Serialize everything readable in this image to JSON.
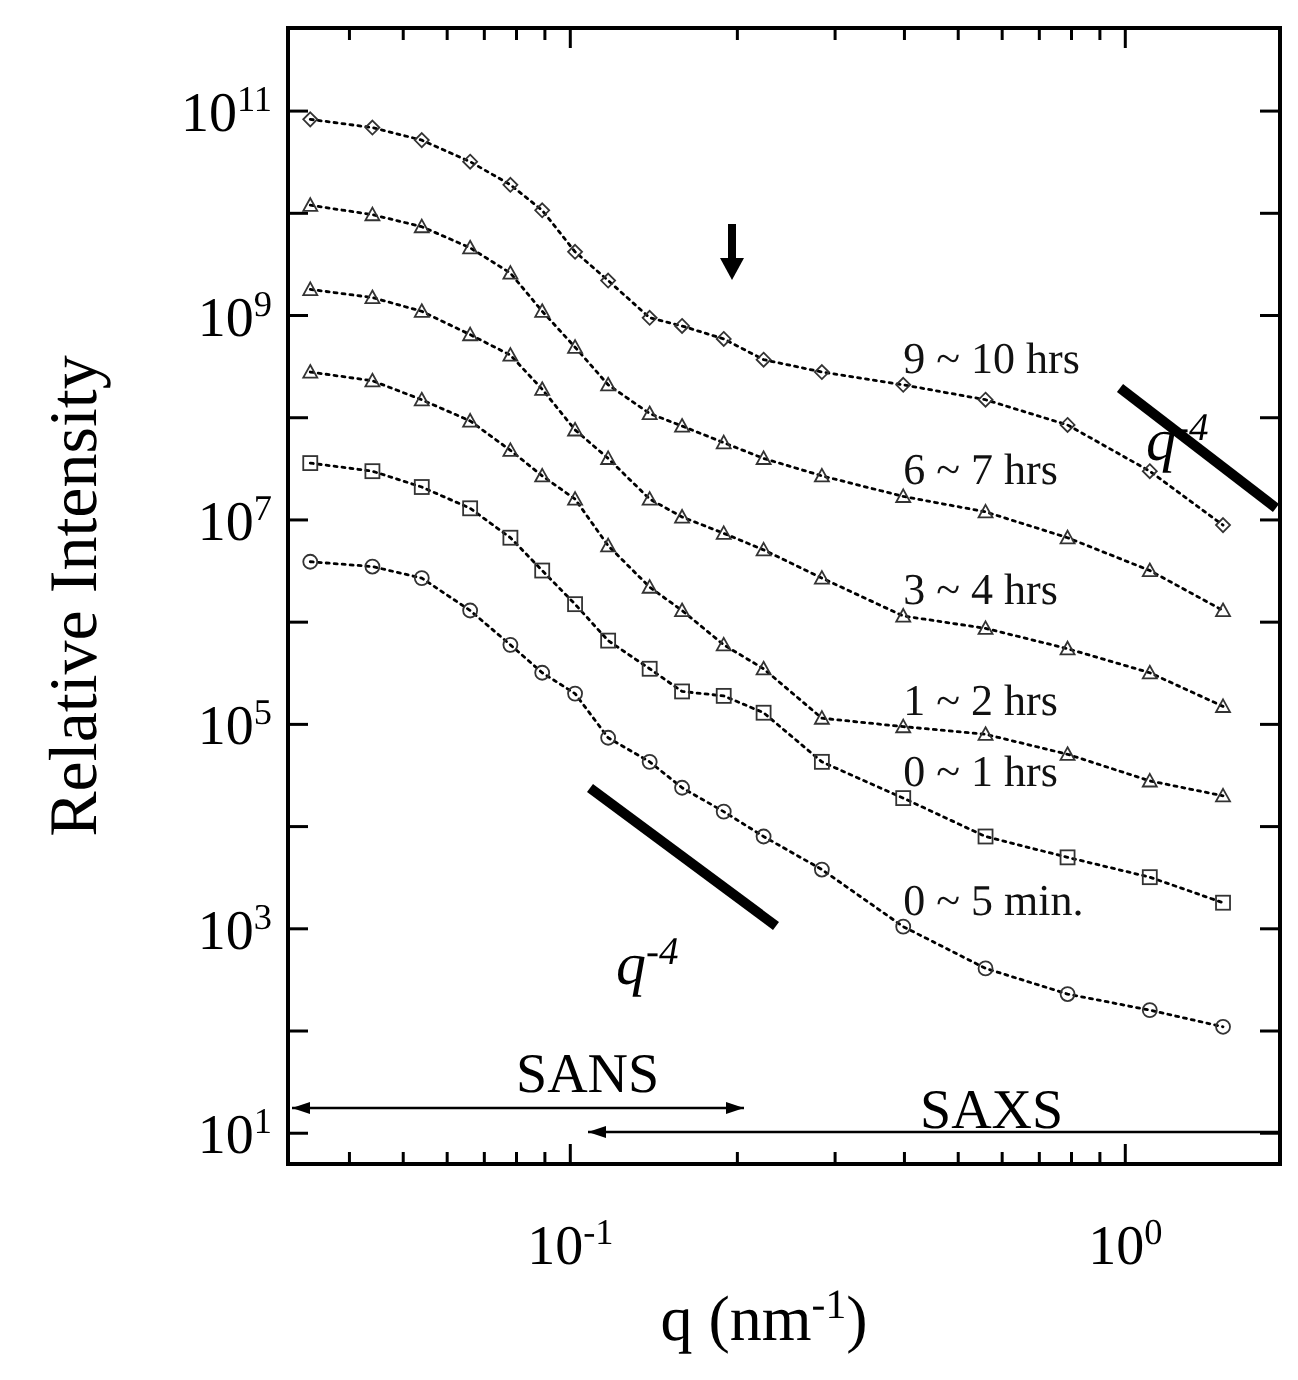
{
  "chart_data": {
    "type": "line",
    "xlabel": "q (nm$^{-1}$)",
    "ylabel": "Relative Intensity",
    "log": "xy",
    "grid": false,
    "line_style": "dotted",
    "xlim": [
      0.031,
      1.9
    ],
    "ylim": [
      5,
      650000000000.0
    ],
    "xticks": [
      {
        "value": 0.04,
        "label": null
      },
      {
        "value": 0.05,
        "label": null
      },
      {
        "value": 0.06,
        "label": null
      },
      {
        "value": 0.07,
        "label": null
      },
      {
        "value": 0.08,
        "label": null
      },
      {
        "value": 0.09,
        "label": null
      },
      {
        "value": 0.1,
        "label": "10$^{-1}$"
      },
      {
        "value": 0.2,
        "label": null
      },
      {
        "value": 0.3,
        "label": null
      },
      {
        "value": 0.4,
        "label": null
      },
      {
        "value": 0.5,
        "label": null
      },
      {
        "value": 0.6,
        "label": null
      },
      {
        "value": 0.7,
        "label": null
      },
      {
        "value": 0.8,
        "label": null
      },
      {
        "value": 0.9,
        "label": null
      },
      {
        "value": 1,
        "label": "10$^{0}$"
      }
    ],
    "yticks": [
      {
        "value": 10,
        "label": "10$^{1}$"
      },
      {
        "value": 100,
        "label": null
      },
      {
        "value": 1000,
        "label": "10$^{3}$"
      },
      {
        "value": 10000,
        "label": null
      },
      {
        "value": 100000,
        "label": "10$^{5}$"
      },
      {
        "value": 1000000,
        "label": null
      },
      {
        "value": 10000000,
        "label": "10$^{7}$"
      },
      {
        "value": 100000000,
        "label": null
      },
      {
        "value": 1000000000,
        "label": "10$^{9}$"
      },
      {
        "value": 10000000000,
        "label": null
      },
      {
        "value": 100000000000,
        "label": "10$^{11}$"
      }
    ],
    "x": [
      0.034,
      0.044,
      0.054,
      0.066,
      0.078,
      0.089,
      0.102,
      0.117,
      0.139,
      0.159,
      0.189,
      0.223,
      0.284,
      0.398,
      0.56,
      0.787,
      1.107,
      1.5
    ],
    "series": [
      {
        "name": "9 ~ 10 hrs",
        "color": "#333333",
        "marker": "diamond",
        "values": [
          83000000000.0,
          69000000000.0,
          52000000000.0,
          32000000000.0,
          19000000000.0,
          10700000000.0,
          4200000000.0,
          2200000000.0,
          950000000.0,
          790000000.0,
          590000000.0,
          370000000.0,
          280000000.0,
          210000000.0,
          150000000.0,
          85000000.0,
          30000000.0,
          8900000.0
        ]
      },
      {
        "name": "6 ~ 7 hrs",
        "color": "#333333",
        "marker": "triangle",
        "values": [
          12000000000.0,
          9700000000.0,
          7400000000.0,
          4600000000.0,
          2600000000.0,
          1100000000.0,
          490000000.0,
          210000000.0,
          110000000.0,
          83000000.0,
          57000000.0,
          40000000.0,
          27000000.0,
          17000000.0,
          12000000.0,
          6700000.0,
          3200000.0,
          1300000.0
        ]
      },
      {
        "name": "3 ~ 4 hrs",
        "color": "#333333",
        "marker": "triangle",
        "values": [
          1800000000.0,
          1500000000.0,
          1100000000.0,
          650000000.0,
          410000000.0,
          190000000.0,
          76000000.0,
          40000000.0,
          16000000.0,
          10700000.0,
          7400000.0,
          5100000.0,
          2700000.0,
          1150000.0,
          870000.0,
          550000.0,
          320000.0,
          150000.0
        ]
      },
      {
        "name": "1 ~ 2 hrs",
        "color": "#333333",
        "marker": "triangle",
        "values": [
          280000000.0,
          230000000.0,
          150000000.0,
          93000000.0,
          48000000.0,
          27000000.0,
          16000000.0,
          5600000.0,
          2200000.0,
          1300000.0,
          600000.0,
          350000.0,
          115000.0,
          95000.0,
          80000.0,
          51000.0,
          28000.0,
          20000.0
        ]
      },
      {
        "name": "0 ~ 1 hrs",
        "color": "#333333",
        "marker": "square",
        "values": [
          36000000.0,
          30000000.0,
          21000000.0,
          13000000.0,
          6700000.0,
          3200000.0,
          1500000.0,
          660000.0,
          350000.0,
          210000.0,
          190000.0,
          130000.0,
          43000.0,
          19000.0,
          8000.0,
          5000.0,
          3200.0,
          1800.0
        ]
      },
      {
        "name": "0 ~ 5 min.",
        "color": "#333333",
        "marker": "circle",
        "values": [
          3900000.0,
          3500000.0,
          2700000.0,
          1300000.0,
          600000.0,
          320000.0,
          200000.0,
          74000.0,
          43000.0,
          24000.0,
          14000.0,
          8000.0,
          3800.0,
          1050.0,
          410.0,
          230.0,
          160.0,
          110.0
        ]
      }
    ],
    "annotations": [
      "q$^{-4}$",
      "q$^{-4}$",
      "SANS",
      "SAXS"
    ]
  }
}
